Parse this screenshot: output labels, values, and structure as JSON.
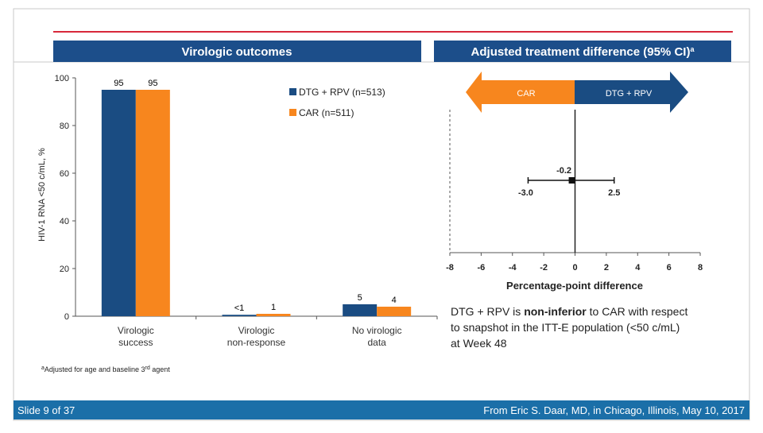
{
  "colors": {
    "navy": "#1a4c82",
    "orange": "#f7861e",
    "red_rule": "#d8283a",
    "footer_bg": "#1b6fa8",
    "header_bg": "#1c4e8a"
  },
  "headers": {
    "left": "Virologic outcomes",
    "right": "Adjusted treatment difference (95% CI)",
    "right_sup": "a"
  },
  "footnote": {
    "sup": "a",
    "text": "Adjusted for age and baseline 3",
    "sup2": "rd",
    "tail": " agent"
  },
  "footer": {
    "slide": "Slide 9 of 37",
    "source": "From Eric S. Daar, MD, in Chicago, Illinois, May 10, 2017"
  },
  "conclusion": {
    "pre": "DTG + RPV is ",
    "bold": "non-inferior",
    "post": " to CAR with respect",
    "line2": "to snapshot in the ITT-E population (<50 c/mL)",
    "line3": "at Week 48"
  },
  "chart_data": [
    {
      "type": "bar",
      "categories": [
        "Virologic success",
        "Virologic non-response",
        "No virologic data"
      ],
      "category_lines": [
        [
          "Virologic",
          "success"
        ],
        [
          "Virologic",
          "non-response"
        ],
        [
          "No virologic",
          "data"
        ]
      ],
      "series": [
        {
          "name": "DTG + RPV (n=513)",
          "color": "#1a4c82",
          "values": [
            95,
            0.6,
            5
          ],
          "labels": [
            "95",
            "<1",
            "5"
          ]
        },
        {
          "name": "CAR (n=511)",
          "color": "#f7861e",
          "values": [
            95,
            1,
            4
          ],
          "labels": [
            "95",
            "1",
            "4"
          ]
        }
      ],
      "ylabel": "HIV-1 RNA <50 c/mL, %",
      "ylim": [
        0,
        100
      ],
      "yticks": [
        0,
        20,
        40,
        60,
        80,
        100
      ],
      "legend_position": "top-right"
    },
    {
      "type": "forest",
      "arrow_left": "CAR",
      "arrow_right": "DTG + RPV",
      "point": -0.2,
      "point_label": "-0.2",
      "ci": [
        -3.0,
        2.5
      ],
      "ci_labels": [
        "-3.0",
        "2.5"
      ],
      "xlim": [
        -8,
        8
      ],
      "xticks": [
        -8,
        -6,
        -4,
        -2,
        0,
        2,
        4,
        6,
        8
      ],
      "xtick_labels": [
        "-8",
        "-6",
        "-4",
        "-2",
        "0",
        "2",
        "4",
        "6",
        "8"
      ],
      "non_inferiority_margin": -8,
      "xlabel": "Percentage-point difference"
    }
  ]
}
